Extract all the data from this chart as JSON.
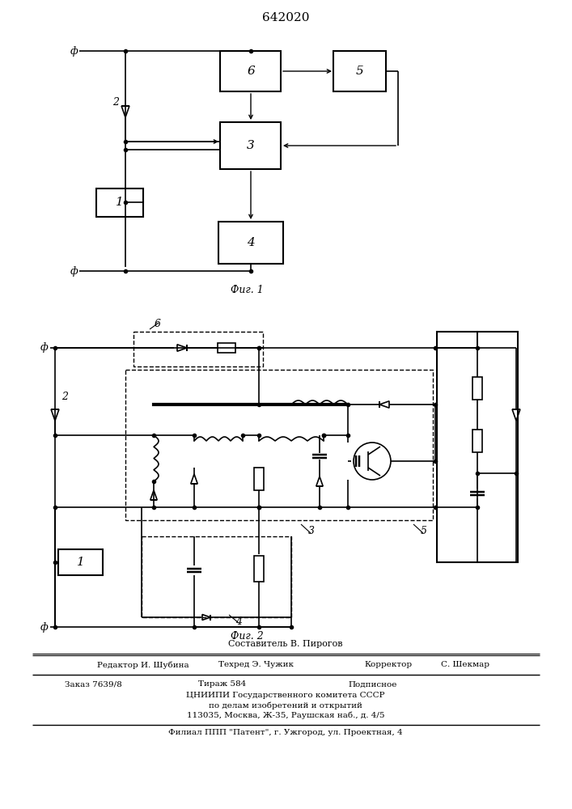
{
  "title": "642020",
  "fig1_caption": "Фиг. 1",
  "fig2_caption": "Фиг. 2",
  "footer_line0": "Составитель В. Пирогов",
  "footer_line1a": "Редактор И. Шубина",
  "footer_line1b": "Техред Э. Чужик",
  "footer_line1c": "Корректор",
  "footer_line1d": "С. Шекмар",
  "footer_line2a": "Заказ 7639/8",
  "footer_line2b": "Тираж 584",
  "footer_line2c": "Подписное",
  "footer_line3": "ЦНИИПИ Государственного комитета СССР",
  "footer_line4": "по делам изобретений и открытий",
  "footer_line5": "113035, Москва, Ж-35, Раушская наб., д. 4/5",
  "footer_line6": "Филиал ППП \"Патент\", г. Ужгород, ул. Проектная, 4",
  "bg_color": "#ffffff"
}
